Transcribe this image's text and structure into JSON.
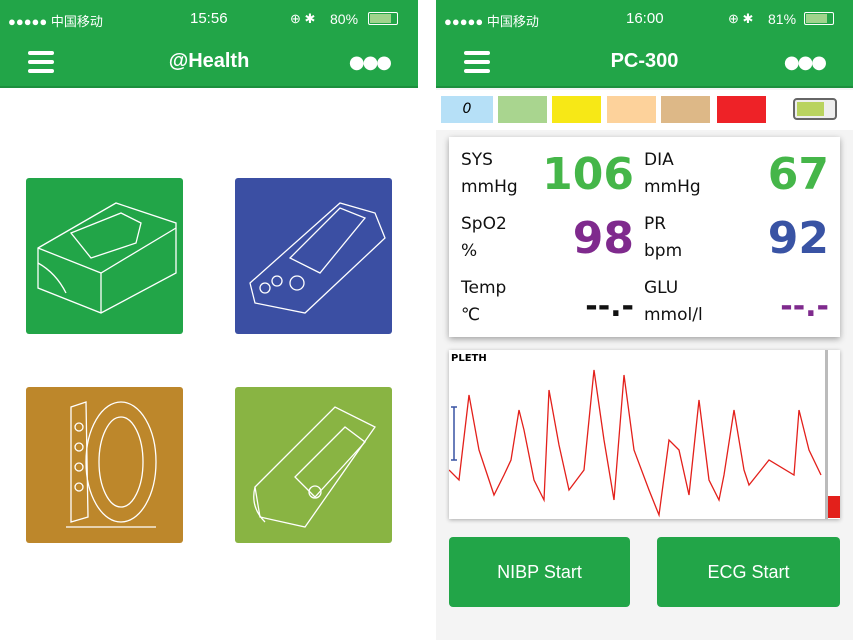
{
  "left": {
    "status": {
      "carrier": "●●●●● 中国移动",
      "time": "15:56",
      "battery": "80%"
    },
    "title": "@Health",
    "tiles": [
      {
        "name": "oximeter",
        "color": "#22a548"
      },
      {
        "name": "monitor",
        "color": "#3b4fa3"
      },
      {
        "name": "ecg",
        "color": "#bd872b"
      },
      {
        "name": "bp-monitor",
        "color": "#89b443"
      }
    ]
  },
  "right": {
    "status": {
      "carrier": "●●●●● 中国移动",
      "time": "16:00",
      "battery": "81%"
    },
    "title": "PC-300",
    "scale": [
      {
        "label": "0",
        "color": "#b6e0f7"
      },
      {
        "label": "",
        "color": "#a9d58f"
      },
      {
        "label": "",
        "color": "#f7e816"
      },
      {
        "label": "",
        "color": "#fdd29b"
      },
      {
        "label": "",
        "color": "#ddb887"
      },
      {
        "label": "",
        "color": "#ee2227"
      }
    ],
    "vitals": [
      {
        "name": "SYS",
        "unit": "mmHg",
        "value": "106",
        "color": "#45b649"
      },
      {
        "name": "DIA",
        "unit": "mmHg",
        "value": "67",
        "color": "#45b649"
      },
      {
        "name": "SpO2",
        "unit": "%",
        "value": "98",
        "color": "#7f2a8d"
      },
      {
        "name": "PR",
        "unit": "bpm",
        "value": "92",
        "color": "#3953a4"
      },
      {
        "name": "Temp",
        "unit": "℃",
        "value": "--.-",
        "color": "#111111"
      },
      {
        "name": "GLU",
        "unit": "mmol/l",
        "value": "--.-",
        "color": "#7f2a8d"
      }
    ],
    "pleth_label": "PLETH",
    "nibp_button": "NIBP Start",
    "ecg_button": "ECG Start"
  }
}
